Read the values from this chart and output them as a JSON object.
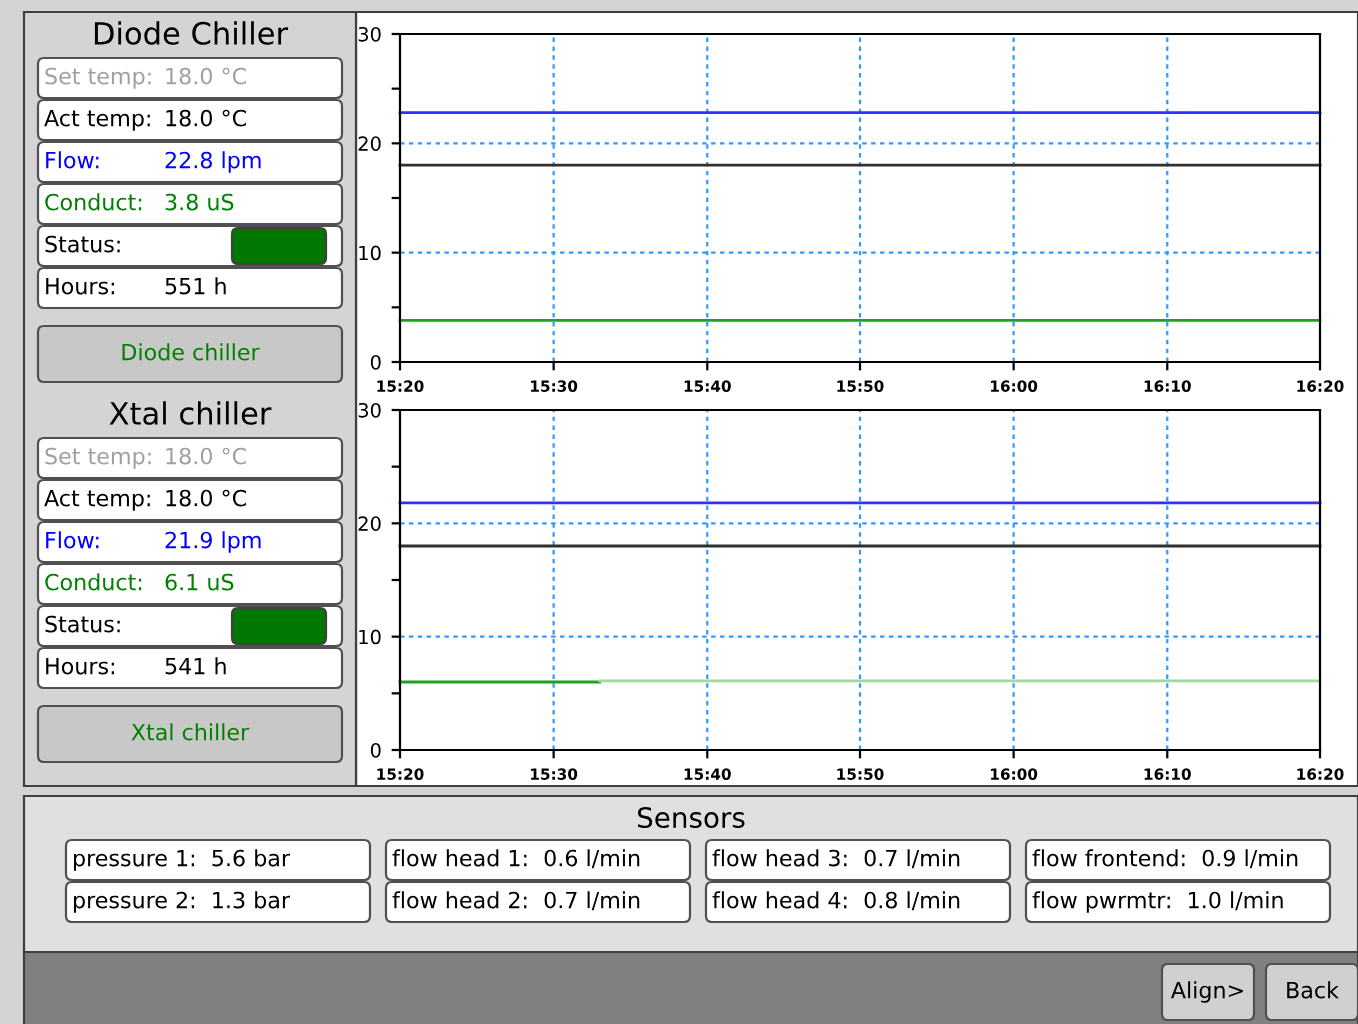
{
  "chart_data": [
    {
      "type": "other",
      "title": "Diode Chiller",
      "annotations": [
        "Set temp:",
        "18.0 °C",
        "Act temp:",
        "18.0 °C",
        "Flow:",
        "22.8 lpm",
        "Conduct:",
        "3.8 uS",
        "Status:",
        "Hours:",
        "551 h",
        "Diode chiller"
      ],
      "colors": [
        "#a0a0a0",
        "#a0a0a0",
        "#000000",
        "#000000",
        "#0000ff",
        "#0000ff",
        "#008000",
        "#008000",
        "#000000",
        "#000000",
        "#000000",
        "#008000"
      ]
    },
    {
      "type": "line",
      "series": [
        {
          "color": "#3030ff",
          "x": [
            15.333,
            16.333
          ],
          "values": [
            22.8,
            22.8
          ]
        },
        {
          "color": "#303030",
          "x": [
            15.333,
            16.333
          ],
          "values": [
            18,
            18
          ]
        },
        {
          "color": "#20a020",
          "x": [
            15.333,
            16.333
          ],
          "values": [
            3.8,
            3.8
          ]
        }
      ],
      "xlim": [
        15.333,
        16.333
      ],
      "xticks": [
        {
          "value": 15.333,
          "label": "15:20"
        },
        {
          "value": 15.5,
          "label": "15:30"
        },
        {
          "value": 15.667,
          "label": "15:40"
        },
        {
          "value": 15.833,
          "label": "15:50"
        },
        {
          "value": 16.0,
          "label": "16:00"
        },
        {
          "value": 16.167,
          "label": "16:10"
        },
        {
          "value": 16.333,
          "label": "16:20"
        }
      ],
      "ylim": [
        0,
        30
      ],
      "yticks": [
        0,
        {
          "value": 5,
          "label": null
        },
        10,
        {
          "value": 15,
          "label": null
        },
        20,
        {
          "value": 25,
          "label": null
        },
        30
      ],
      "grid": true,
      "legend": false,
      "marker": "none",
      "line_style": "solid"
    },
    {
      "type": "other",
      "title": "Xtal chiller",
      "annotations": [
        "Set temp:",
        "18.0 °C",
        "Act temp:",
        "18.0 °C",
        "Flow:",
        "21.9 lpm",
        "Conduct:",
        "6.1 uS",
        "Status:",
        "Hours:",
        "541 h",
        "Xtal chiller"
      ],
      "colors": [
        "#a0a0a0",
        "#a0a0a0",
        "#000000",
        "#000000",
        "#0000ff",
        "#0000ff",
        "#008000",
        "#008000",
        "#000000",
        "#000000",
        "#000000",
        "#008000"
      ]
    },
    {
      "type": "line",
      "series": [
        {
          "color": "#3030ff",
          "x": [
            15.333,
            16.333
          ],
          "values": [
            21.8,
            21.8
          ]
        },
        {
          "color": "#303030",
          "x": [
            15.333,
            16.333
          ],
          "values": [
            18,
            18
          ]
        },
        {
          "color": "#20a020",
          "x": [
            15.333,
            15.55
          ],
          "values": [
            6.0,
            6.0
          ]
        },
        {
          "color": "#a0d8a0",
          "x": [
            15.55,
            16.333
          ],
          "values": [
            6.1,
            6.1
          ]
        }
      ],
      "xlim": [
        15.333,
        16.333
      ],
      "xticks": [
        {
          "value": 15.333,
          "label": "15:20"
        },
        {
          "value": 15.5,
          "label": "15:30"
        },
        {
          "value": 15.667,
          "label": "15:40"
        },
        {
          "value": 15.833,
          "label": "15:50"
        },
        {
          "value": 16.0,
          "label": "16:00"
        },
        {
          "value": 16.167,
          "label": "16:10"
        },
        {
          "value": 16.333,
          "label": "16:20"
        }
      ],
      "ylim": [
        0,
        30
      ],
      "yticks": [
        0,
        {
          "value": 5,
          "label": null
        },
        10,
        {
          "value": 15,
          "label": null
        },
        20,
        {
          "value": 25,
          "label": null
        },
        30
      ],
      "grid": true,
      "legend": false,
      "marker": "none",
      "line_style": "solid"
    },
    {
      "type": "other",
      "title": "Sensors",
      "annotations": [
        "pressure 1:  5.6 bar",
        "pressure 2:  1.3 bar",
        "flow head 1:  0.6 l/min",
        "flow head 2:  0.7 l/min",
        "flow head 3:  0.7 l/min",
        "flow head 4:  0.8 l/min",
        "flow frontend:  0.9 l/min",
        "flow pwrmtr:  1.0 l/min",
        "Align>",
        "Back"
      ]
    }
  ]
}
